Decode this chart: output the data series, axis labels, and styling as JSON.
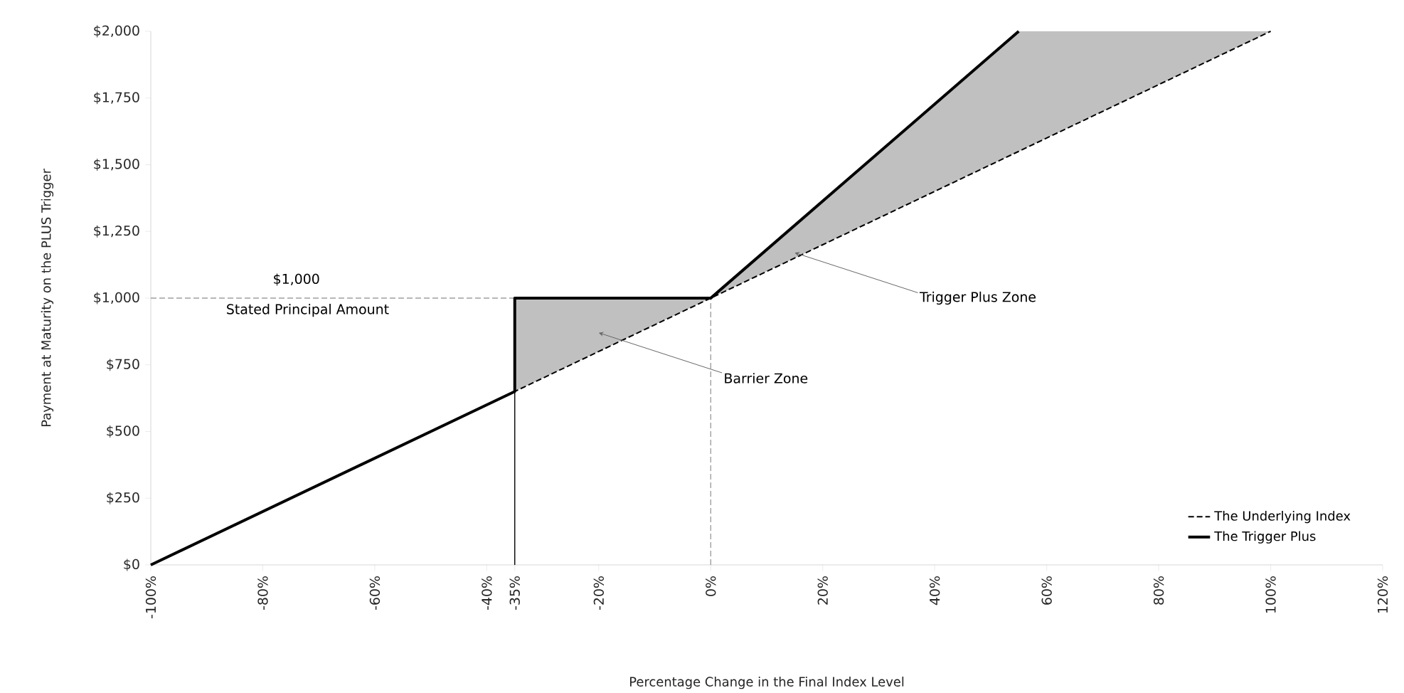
{
  "chart_data": {
    "type": "line",
    "xlabel": "Percentage Change in the Final Index Level",
    "ylabel": "Payment at Maturity on the PLUS Trigger",
    "xlim": [
      -100,
      120
    ],
    "xticks": [
      {
        "value": -100,
        "label": "-100%"
      },
      {
        "value": -80,
        "label": "-80%"
      },
      {
        "value": -60,
        "label": "-60%"
      },
      {
        "value": -40,
        "label": "-40%"
      },
      {
        "value": -35,
        "label": "-35%"
      },
      {
        "value": -20,
        "label": "-20%"
      },
      {
        "value": 0,
        "label": "0%"
      },
      {
        "value": 20,
        "label": "20%"
      },
      {
        "value": 40,
        "label": "40%"
      },
      {
        "value": 60,
        "label": "60%"
      },
      {
        "value": 80,
        "label": "80%"
      },
      {
        "value": 100,
        "label": "100%"
      },
      {
        "value": 120,
        "label": "120%"
      }
    ],
    "ylim": [
      0,
      2000
    ],
    "yticks": [
      {
        "value": 0,
        "label": "$0"
      },
      {
        "value": 250,
        "label": "$250"
      },
      {
        "value": 500,
        "label": "$500"
      },
      {
        "value": 750,
        "label": "$750"
      },
      {
        "value": 1000,
        "label": "$1,000"
      },
      {
        "value": 1250,
        "label": "$1,250"
      },
      {
        "value": 1500,
        "label": "$1,500"
      },
      {
        "value": 1750,
        "label": "$1,750"
      },
      {
        "value": 2000,
        "label": "$2,000"
      }
    ],
    "series": [
      {
        "color": "#a0a0a0",
        "line_style": "dashed",
        "x": [
          -100,
          0
        ],
        "values": [
          1000,
          1000
        ]
      },
      {
        "color": "#a0a0a0",
        "line_style": "dashed",
        "x": [
          0,
          0
        ],
        "values": [
          0,
          1000
        ]
      },
      {
        "color": "#000000",
        "line_style": "solid",
        "x": [
          -35,
          -35
        ],
        "values": [
          0,
          650
        ]
      },
      {
        "name": "The Underlying Index",
        "color": "#000000",
        "line_style": "dashed",
        "x": [
          -100,
          -35,
          -35,
          0,
          55,
          100
        ],
        "values": [
          0,
          650,
          650,
          1000,
          1550,
          2000
        ],
        "lower": [
          null,
          650,
          650,
          1000,
          1550,
          2000
        ],
        "upper": [
          null,
          650,
          1000,
          1000,
          2000,
          2000
        ]
      },
      {
        "name": "The Trigger Plus",
        "color": "#000000",
        "line_style": "solid",
        "x": [
          -100,
          -35,
          -35,
          0,
          55
        ],
        "values": [
          0,
          650,
          1000,
          1000,
          2000
        ]
      }
    ],
    "annotations": [
      "$1,000",
      "Stated Principal Amount",
      {
        "text": "Barrier Zone",
        "x": -20,
        "y": 870
      },
      {
        "text": "Trigger Plus Zone",
        "x": 15,
        "y": 1170
      }
    ],
    "legend": "bottom right",
    "grid": false
  }
}
